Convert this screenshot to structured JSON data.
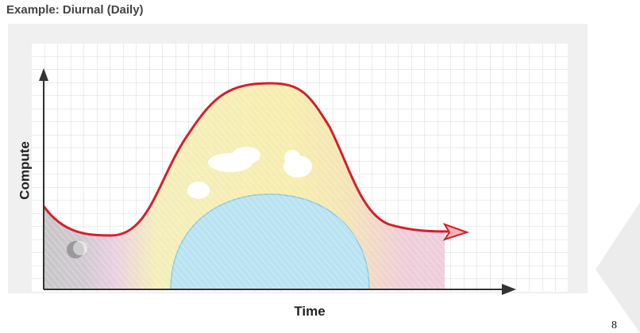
{
  "header": {
    "title": "Example: Diurnal (Daily)"
  },
  "diagram": {
    "y_axis_label": "Compute",
    "x_axis_label": "Time"
  },
  "footer": {
    "page_number": "8"
  }
}
